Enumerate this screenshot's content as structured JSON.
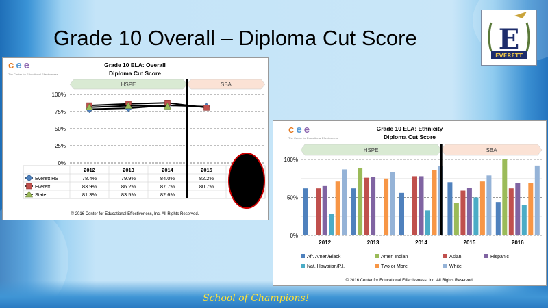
{
  "slide": {
    "title": "Grade 10 Overall – Diploma Cut Score",
    "motto": "School of Champions!",
    "logo_text": "EVERETT",
    "logo_letter": "E",
    "logo_icon": "school-crest-icon"
  },
  "brand": {
    "cee_letters": [
      "c",
      "e",
      "e"
    ],
    "cee_tagline": "The Center for Educational Effectiveness",
    "colors": {
      "c": "#e4761b",
      "e1": "#5a9bd4",
      "e2": "#8d67b0"
    }
  },
  "chart_data": [
    {
      "type": "line",
      "title": "Grade 10 ELA: Overall",
      "subtitle": "Diploma Cut Score",
      "x": [
        "2012",
        "2013",
        "2014",
        "2015",
        "2016"
      ],
      "ylim": [
        0,
        100
      ],
      "y_ticks": [
        "0%",
        "25%",
        "50%",
        "75%",
        "100%"
      ],
      "bands": [
        {
          "label": "HSPE",
          "from": "2012",
          "to": "2014",
          "color": "#d9ead3"
        },
        {
          "label": "SBA",
          "from": "2015",
          "to": "2016",
          "color": "#fbe2d5"
        }
      ],
      "series": [
        {
          "name": "Everett HS",
          "values": [
            78.4,
            79.9,
            84.0,
            82.2,
            null
          ],
          "labels": [
            "78.4%",
            "79.9%",
            "84.0%",
            "82.2%",
            ""
          ],
          "color": "#4f81bd",
          "marker": "diamond"
        },
        {
          "name": "Everett",
          "values": [
            83.9,
            86.2,
            87.7,
            80.7,
            null
          ],
          "labels": [
            "83.9%",
            "86.2%",
            "87.7%",
            "80.7%",
            ""
          ],
          "color": "#c0504d",
          "marker": "square"
        },
        {
          "name": "State",
          "values": [
            81.3,
            83.5,
            82.6,
            null,
            null
          ],
          "labels": [
            "81.3%",
            "83.5%",
            "82.6%",
            "",
            ""
          ],
          "color": "#9bbb59",
          "marker": "triangle"
        }
      ],
      "footer": "© 2016 Center for Educational Effectiveness, Inc. All Rights Reserved.",
      "grid": "dashed",
      "legend": "table-below"
    },
    {
      "type": "bar",
      "title": "Grade 10 ELA: Ethnicity",
      "subtitle": "Diploma Cut Score",
      "categories": [
        "2012",
        "2013",
        "2014",
        "2015",
        "2016"
      ],
      "ylim": [
        0,
        100
      ],
      "y_ticks": [
        "0%",
        "50%",
        "100%"
      ],
      "bands": [
        {
          "label": "HSPE",
          "from": "2012",
          "to": "2014",
          "color": "#d9ead3"
        },
        {
          "label": "SBA",
          "from": "2015",
          "to": "2016",
          "color": "#fbe2d5"
        }
      ],
      "series": [
        {
          "name": "Afr. Amer./Black",
          "values": [
            62,
            62,
            56,
            70,
            44
          ],
          "color": "#4f81bd"
        },
        {
          "name": "Amer. Indian",
          "values": [
            null,
            89,
            null,
            43,
            100
          ],
          "color": "#9bbb59"
        },
        {
          "name": "Asian",
          "values": [
            62,
            76,
            78,
            59,
            62
          ],
          "color": "#c0504d"
        },
        {
          "name": "Hispanic",
          "values": [
            65,
            77,
            78,
            63,
            69
          ],
          "color": "#8064a2"
        },
        {
          "name": "Nat. Hawaiian/P.I.",
          "values": [
            28,
            null,
            33,
            50,
            40
          ],
          "color": "#4bacc6"
        },
        {
          "name": "Two or More",
          "values": [
            71,
            75,
            86,
            71,
            69
          ],
          "color": "#f79646"
        },
        {
          "name": "White",
          "values": [
            87,
            83,
            91,
            79,
            92
          ],
          "color": "#95b3d7"
        }
      ],
      "footer": "© 2016 Center for Educational Effectiveness, Inc. All Rights Reserved.",
      "grid": "dashed",
      "legend": "bottom"
    }
  ]
}
